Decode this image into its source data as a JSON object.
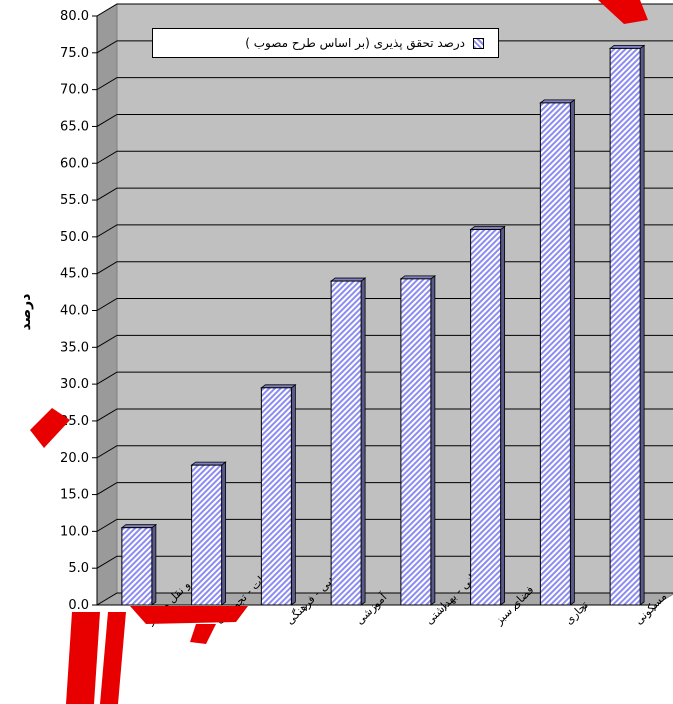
{
  "colors": {
    "plot_background": "#c0c0c0",
    "bar_fill": "#b4b4ff",
    "bar_hatch": "#8c8cf2",
    "watermark": "#e80000"
  },
  "chart_data": {
    "type": "bar",
    "title": "",
    "xlabel": "",
    "ylabel": "درصد",
    "ylim": [
      0,
      80
    ],
    "ytick_step": 5,
    "grid": true,
    "legend_position": "top",
    "categories": [
      "حمل و نقل و انبار",
      "تاسیسات - تجهیزات",
      "مذهبی - فرهنگی",
      "آموزشی",
      "درمانی - بهداشتی",
      "فضای سبز",
      "تجاری",
      "مسکونی"
    ],
    "series": [
      {
        "name": "درصد تحقق پذیری (بر اساس طرح مصوب )",
        "values": [
          10.5,
          19.0,
          29.5,
          44.0,
          44.3,
          51.0,
          68.2,
          75.6
        ]
      }
    ]
  }
}
